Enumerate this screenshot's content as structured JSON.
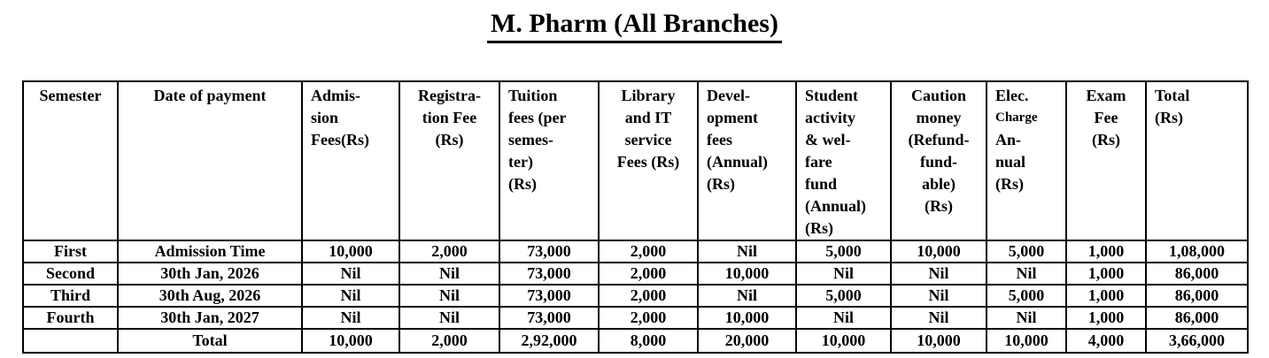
{
  "title": "M. Pharm (All Branches)",
  "colors": {
    "text": "#000000",
    "border": "#000000",
    "background": "#ffffff"
  },
  "table": {
    "header": {
      "semester": "Semester",
      "date_of_payment": "Date of payment",
      "admission_fees": "Admis-\nsion\nFees(Rs)",
      "registration_fee": "Registra-\ntion Fee\n(Rs)",
      "tuition_fees": "Tuition\nfees (per\nsemes-\nter)\n(Rs)",
      "library_it_service": "Library\nand IT\nservice\nFees (Rs)",
      "development_fees": "Devel-\nopment\nfees\n(Annual)\n(Rs)",
      "student_activity": "Student\nactivity\n& wel-\nfare\nfund\n(Annual)\n(Rs)",
      "caution_money": "Caution\nmoney\n(Refund-\nfund-\nable)\n(Rs)",
      "elec_charge": {
        "part1": "Elec.",
        "part2": "Charge",
        "part3": "An-\nnual\n(Rs)"
      },
      "exam_fee": "Exam\nFee\n(Rs)",
      "total": "Total\n(Rs)"
    },
    "rows": [
      {
        "cells": [
          "First",
          "Admission Time",
          "10,000",
          "2,000",
          "73,000",
          "2,000",
          "Nil",
          "5,000",
          "10,000",
          "5,000",
          "1,000",
          "1,08,000"
        ]
      },
      {
        "cells": [
          "Second",
          "30th Jan, 2026",
          "Nil",
          "Nil",
          "73,000",
          "2,000",
          "10,000",
          "Nil",
          "Nil",
          "Nil",
          "1,000",
          "86,000"
        ]
      },
      {
        "cells": [
          "Third",
          "30th Aug, 2026",
          "Nil",
          "Nil",
          "73,000",
          "2,000",
          "Nil",
          "5,000",
          "Nil",
          "5,000",
          "1,000",
          "86,000"
        ]
      },
      {
        "cells": [
          "Fourth",
          "30th Jan, 2027",
          "Nil",
          "Nil",
          "73,000",
          "2,000",
          "10,000",
          "Nil",
          "Nil",
          "Nil",
          "1,000",
          "86,000"
        ]
      },
      {
        "cells": [
          "",
          "Total",
          "10,000",
          "2,000",
          "2,92,000",
          "8,000",
          "20,000",
          "10,000",
          "10,000",
          "10,000",
          "4,000",
          "3,66,000"
        ]
      }
    ]
  }
}
